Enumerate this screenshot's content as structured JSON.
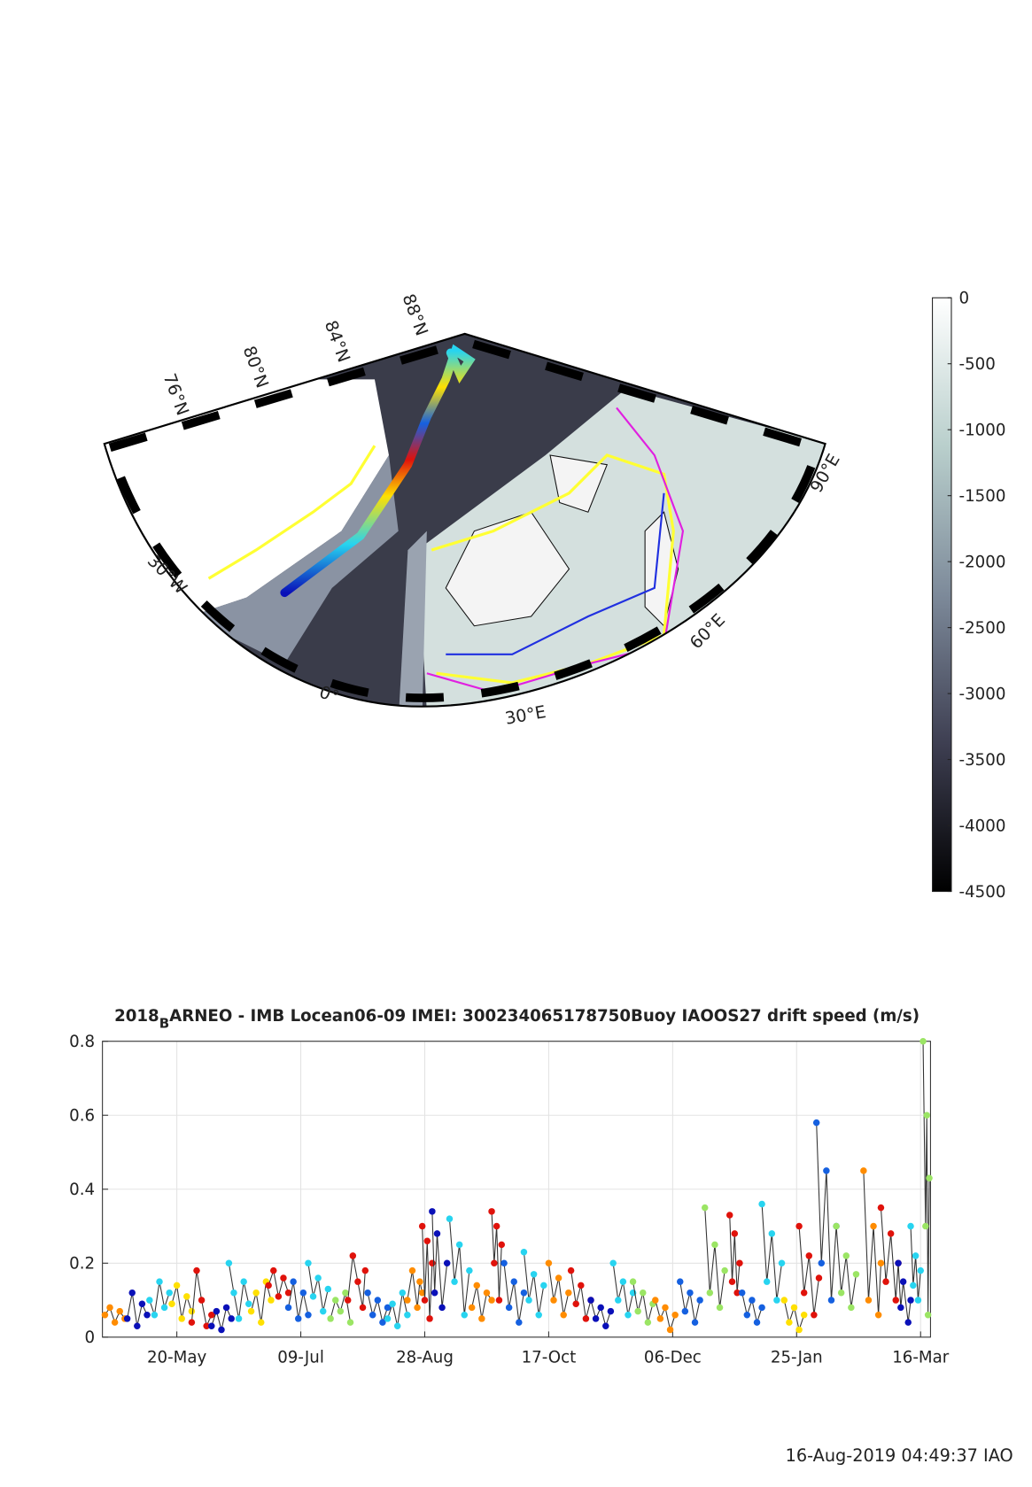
{
  "chart_data": [
    {
      "type": "map",
      "lat_labels": [
        "76°N",
        "80°N",
        "84°N",
        "88°N"
      ],
      "lon_labels": [
        "30°W",
        "0°",
        "30°E",
        "60°E",
        "90°E"
      ],
      "clim": [
        -4500,
        0
      ],
      "cticks": [
        0,
        -500,
        -1000,
        -1500,
        -2000,
        -2500,
        -3000,
        -3500,
        -4000,
        -4500
      ]
    },
    {
      "type": "scatter",
      "title": [
        "2018",
        "B",
        "ARNEO - IMB Locean06-09 IMEI: 300234065178750Buoy IAOOS27 drift speed (m/s)"
      ],
      "xlim": [
        0,
        334
      ],
      "xticks": [
        {
          "value": 30,
          "label": "20-May"
        },
        {
          "value": 80,
          "label": "09-Jul"
        },
        {
          "value": 130,
          "label": "28-Aug"
        },
        {
          "value": 180,
          "label": "17-Oct"
        },
        {
          "value": 230,
          "label": "06-Dec"
        },
        {
          "value": 280,
          "label": "25-Jan"
        },
        {
          "value": 330,
          "label": "16-Mar"
        }
      ],
      "ylim": [
        0,
        0.8
      ],
      "yticks": [
        0,
        0.2,
        0.4,
        0.6,
        0.8
      ],
      "grid": true,
      "series": [
        {
          "color": "#ff8c00",
          "x": [
            1,
            3,
            5,
            7,
            9
          ],
          "values": [
            0.06,
            0.08,
            0.04,
            0.07,
            0.05
          ]
        },
        {
          "color": "#0a10b8",
          "x": [
            10,
            12,
            14,
            16,
            18
          ],
          "values": [
            0.05,
            0.12,
            0.03,
            0.09,
            0.06
          ]
        },
        {
          "color": "#27d4f0",
          "x": [
            19,
            21,
            23,
            25,
            27
          ],
          "values": [
            0.1,
            0.06,
            0.15,
            0.08,
            0.12
          ]
        },
        {
          "color": "#ffe000",
          "x": [
            28,
            30,
            32,
            34,
            36
          ],
          "values": [
            0.09,
            0.14,
            0.05,
            0.11,
            0.07
          ]
        },
        {
          "color": "#e0120b",
          "x": [
            36,
            38,
            40,
            42,
            44
          ],
          "values": [
            0.04,
            0.18,
            0.1,
            0.03,
            0.06
          ]
        },
        {
          "color": "#0a10b8",
          "x": [
            44,
            46,
            48,
            50,
            52
          ],
          "values": [
            0.03,
            0.07,
            0.02,
            0.08,
            0.05
          ]
        },
        {
          "color": "#27d4f0",
          "x": [
            51,
            53,
            55,
            57,
            59
          ],
          "values": [
            0.2,
            0.12,
            0.05,
            0.15,
            0.09
          ]
        },
        {
          "color": "#ffe000",
          "x": [
            60,
            62,
            64,
            66,
            68
          ],
          "values": [
            0.07,
            0.12,
            0.04,
            0.15,
            0.1
          ]
        },
        {
          "color": "#e0120b",
          "x": [
            67,
            69,
            71,
            73,
            75
          ],
          "values": [
            0.14,
            0.18,
            0.11,
            0.16,
            0.12
          ]
        },
        {
          "color": "#1560e0",
          "x": [
            75,
            77,
            79,
            81,
            83
          ],
          "values": [
            0.08,
            0.15,
            0.05,
            0.12,
            0.06
          ]
        },
        {
          "color": "#27d4f0",
          "x": [
            83,
            85,
            87,
            89,
            91
          ],
          "values": [
            0.2,
            0.11,
            0.16,
            0.07,
            0.13
          ]
        },
        {
          "color": "#9be564",
          "x": [
            92,
            94,
            96,
            98,
            100
          ],
          "values": [
            0.05,
            0.1,
            0.07,
            0.12,
            0.04
          ]
        },
        {
          "color": "#e0120b",
          "x": [
            99,
            101,
            103,
            105,
            106
          ],
          "values": [
            0.1,
            0.22,
            0.15,
            0.08,
            0.18
          ]
        },
        {
          "color": "#1560e0",
          "x": [
            107,
            109,
            111,
            113,
            115
          ],
          "values": [
            0.12,
            0.06,
            0.1,
            0.04,
            0.08
          ]
        },
        {
          "color": "#27d4f0",
          "x": [
            115,
            117,
            119,
            121,
            123
          ],
          "values": [
            0.05,
            0.09,
            0.03,
            0.12,
            0.06
          ]
        },
        {
          "color": "#ff8c00",
          "x": [
            123,
            125,
            127,
            128,
            129
          ],
          "values": [
            0.1,
            0.18,
            0.08,
            0.15,
            0.12
          ]
        },
        {
          "color": "#e0120b",
          "x": [
            129,
            130,
            131,
            132,
            133
          ],
          "values": [
            0.3,
            0.1,
            0.26,
            0.05,
            0.2
          ]
        },
        {
          "color": "#0a10b8",
          "x": [
            133,
            134,
            135,
            137,
            139
          ],
          "values": [
            0.34,
            0.12,
            0.28,
            0.08,
            0.2
          ]
        },
        {
          "color": "#27d4f0",
          "x": [
            140,
            142,
            144,
            146,
            148
          ],
          "values": [
            0.32,
            0.15,
            0.25,
            0.06,
            0.18
          ]
        },
        {
          "color": "#ff8c00",
          "x": [
            149,
            151,
            153,
            155,
            157
          ],
          "values": [
            0.08,
            0.14,
            0.05,
            0.12,
            0.1
          ]
        },
        {
          "color": "#e0120b",
          "x": [
            157,
            158,
            159,
            160,
            161
          ],
          "values": [
            0.34,
            0.2,
            0.3,
            0.1,
            0.25
          ]
        },
        {
          "color": "#1560e0",
          "x": [
            162,
            164,
            166,
            168,
            170
          ],
          "values": [
            0.2,
            0.08,
            0.15,
            0.04,
            0.12
          ]
        },
        {
          "color": "#27d4f0",
          "x": [
            170,
            172,
            174,
            176,
            178
          ],
          "values": [
            0.23,
            0.1,
            0.17,
            0.06,
            0.14
          ]
        },
        {
          "color": "#ff8c00",
          "x": [
            180,
            182,
            184,
            186,
            188
          ],
          "values": [
            0.2,
            0.1,
            0.16,
            0.06,
            0.12
          ]
        },
        {
          "color": "#e0120b",
          "x": [
            189,
            191,
            193,
            195,
            197
          ],
          "values": [
            0.18,
            0.09,
            0.14,
            0.05,
            0.1
          ]
        },
        {
          "color": "#0a10b8",
          "x": [
            197,
            199,
            201,
            203,
            205
          ],
          "values": [
            0.1,
            0.05,
            0.08,
            0.03,
            0.07
          ]
        },
        {
          "color": "#27d4f0",
          "x": [
            206,
            208,
            210,
            212,
            214
          ],
          "values": [
            0.2,
            0.1,
            0.15,
            0.06,
            0.12
          ]
        },
        {
          "color": "#9be564",
          "x": [
            214,
            216,
            218,
            220,
            222
          ],
          "values": [
            0.15,
            0.07,
            0.12,
            0.04,
            0.09
          ]
        },
        {
          "color": "#ff8c00",
          "x": [
            223,
            225,
            227,
            229,
            231
          ],
          "values": [
            0.1,
            0.05,
            0.08,
            0.02,
            0.06
          ]
        },
        {
          "color": "#1560e0",
          "x": [
            233,
            235,
            237,
            239,
            241
          ],
          "values": [
            0.15,
            0.07,
            0.12,
            0.04,
            0.1
          ]
        },
        {
          "color": "#9be564",
          "x": [
            243,
            245,
            247,
            249,
            251
          ],
          "values": [
            0.35,
            0.12,
            0.25,
            0.08,
            0.18
          ]
        },
        {
          "color": "#e0120b",
          "x": [
            253,
            254,
            255,
            256,
            257
          ],
          "values": [
            0.33,
            0.15,
            0.28,
            0.12,
            0.2
          ]
        },
        {
          "color": "#1560e0",
          "x": [
            258,
            260,
            262,
            264,
            266
          ],
          "values": [
            0.12,
            0.06,
            0.1,
            0.04,
            0.08
          ]
        },
        {
          "color": "#27d4f0",
          "x": [
            266,
            268,
            270,
            272,
            274
          ],
          "values": [
            0.36,
            0.15,
            0.28,
            0.1,
            0.2
          ]
        },
        {
          "color": "#ffe000",
          "x": [
            275,
            277,
            279,
            281,
            283
          ],
          "values": [
            0.1,
            0.04,
            0.08,
            0.02,
            0.06
          ]
        },
        {
          "color": "#e0120b",
          "x": [
            281,
            283,
            285,
            287,
            289
          ],
          "values": [
            0.3,
            0.12,
            0.22,
            0.06,
            0.16
          ]
        },
        {
          "color": "#1560e0",
          "x": [
            288,
            290,
            292,
            294,
            296
          ],
          "values": [
            0.58,
            0.2,
            0.45,
            0.1,
            0.3
          ]
        },
        {
          "color": "#9be564",
          "x": [
            296,
            298,
            300,
            302,
            304
          ],
          "values": [
            0.3,
            0.12,
            0.22,
            0.08,
            0.17
          ]
        },
        {
          "color": "#ff8c00",
          "x": [
            307,
            309,
            311,
            313,
            314
          ],
          "values": [
            0.45,
            0.1,
            0.3,
            0.06,
            0.2
          ]
        },
        {
          "color": "#e0120b",
          "x": [
            314,
            316,
            318,
            320,
            321
          ],
          "values": [
            0.35,
            0.15,
            0.28,
            0.1,
            0.2
          ]
        },
        {
          "color": "#0a10b8",
          "x": [
            321,
            322,
            323,
            325,
            326
          ],
          "values": [
            0.2,
            0.08,
            0.15,
            0.04,
            0.1
          ]
        },
        {
          "color": "#27d4f0",
          "x": [
            326,
            327,
            328,
            329,
            330
          ],
          "values": [
            0.3,
            0.14,
            0.22,
            0.1,
            0.18
          ]
        },
        {
          "color": "#9be564",
          "x": [
            331,
            332,
            332.5,
            333,
            333.5
          ],
          "values": [
            0.8,
            0.3,
            0.6,
            0.06,
            0.43
          ]
        }
      ]
    }
  ],
  "footer": "16-Aug-2019 04:49:37 IAO"
}
